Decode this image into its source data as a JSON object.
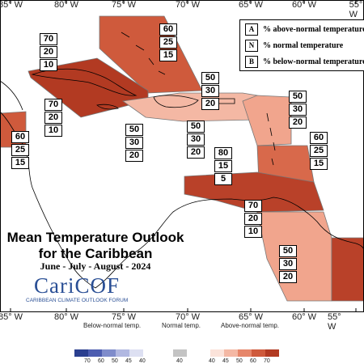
{
  "title_line1": "Mean Temperature Outlook",
  "title_line2": "for the Caribbean",
  "period": "June - July - August - 2024",
  "logo": {
    "name": "CariCOF",
    "tagline": "CARIBBEAN CLIMATE OUTLOOK FORUM"
  },
  "longitudes_top": [
    "85° W",
    "80° W",
    "75° W",
    "70° W",
    "65° W",
    "60° W",
    "55° W"
  ],
  "longitudes_bottom": [
    "85° W",
    "80° W",
    "75° W",
    "70° W",
    "65° W",
    "60° W",
    "55° W"
  ],
  "legend": {
    "a_key": "A",
    "a_label": "% above-normal temperature",
    "n_key": "N",
    "n_label": "% normal temperature",
    "b_key": "B",
    "b_label": "% below-normal temperature"
  },
  "forecast_zones": [
    {
      "above": "60",
      "normal": "25",
      "below": "15"
    },
    {
      "above": "70",
      "normal": "20",
      "below": "10"
    },
    {
      "above": "50",
      "normal": "30",
      "below": "20"
    },
    {
      "above": "70",
      "normal": "20",
      "below": "10"
    },
    {
      "above": "50",
      "normal": "30",
      "below": "20"
    },
    {
      "above": "50",
      "normal": "30",
      "below": "20"
    },
    {
      "above": "60",
      "normal": "25",
      "below": "15"
    },
    {
      "above": "80",
      "normal": "15",
      "below": "5"
    },
    {
      "above": "50",
      "normal": "30",
      "below": "20"
    },
    {
      "above": "60",
      "normal": "25",
      "below": "15"
    },
    {
      "above": "70",
      "normal": "20",
      "below": "10"
    },
    {
      "above": "50",
      "normal": "30",
      "below": "20"
    }
  ],
  "colors": {
    "below": [
      "#2b3f8f",
      "#4d5db0",
      "#7f8ccb",
      "#b1b8e1",
      "#dde0f2"
    ],
    "normal": "#c4c4c4",
    "above": [
      "#fbe3da",
      "#f4b8a4",
      "#e6866a",
      "#cf5a3c",
      "#b23a22"
    ],
    "zone_50": "#f1a58d",
    "zone_60": "#d8694b",
    "zone_70": "#b94129",
    "zone_80": "#a8321d"
  },
  "scale": {
    "below_label": "Below-normal temp.",
    "normal_label": "Normal temp.",
    "above_label": "Above-normal temp.",
    "below_ticks": [
      "70",
      "60",
      "50",
      "45",
      "40"
    ],
    "normal_tick": "40",
    "above_ticks": [
      "40",
      "45",
      "50",
      "60",
      "70"
    ]
  }
}
